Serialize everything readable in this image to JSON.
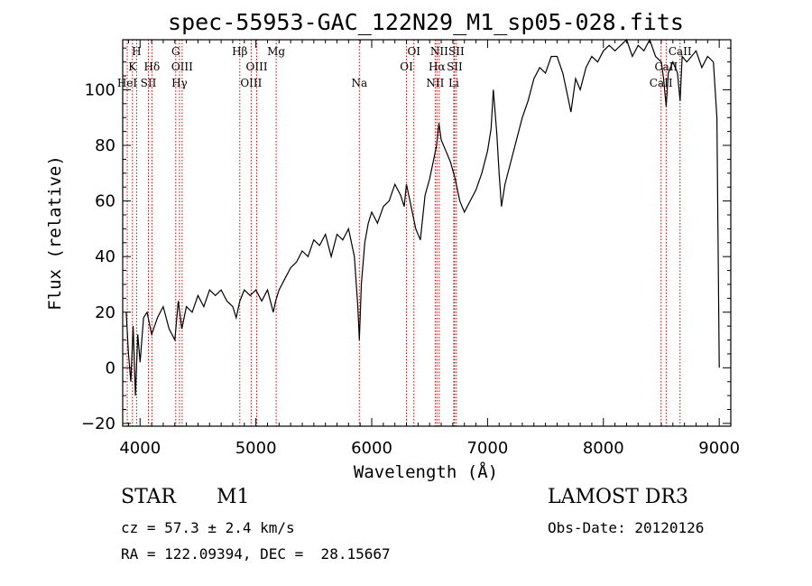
{
  "chart_data": {
    "type": "line",
    "title": "spec-55953-GAC_122N29_M1_sp05-028.fits",
    "xlabel": "Wavelength (Å)",
    "ylabel": "Flux (relative)",
    "xlim": [
      3850,
      9100
    ],
    "ylim": [
      -21,
      118
    ],
    "xticks": [
      4000,
      5000,
      6000,
      7000,
      8000,
      9000
    ],
    "yticks": [
      -20,
      0,
      20,
      40,
      60,
      80,
      100
    ],
    "series": [
      {
        "name": "flux",
        "x": [
          3880,
          3900,
          3920,
          3940,
          3960,
          3980,
          4000,
          4030,
          4060,
          4100,
          4150,
          4200,
          4250,
          4300,
          4330,
          4360,
          4400,
          4450,
          4500,
          4550,
          4600,
          4650,
          4700,
          4750,
          4800,
          4830,
          4861,
          4900,
          4950,
          5000,
          5050,
          5100,
          5150,
          5170,
          5200,
          5250,
          5300,
          5350,
          5400,
          5450,
          5500,
          5550,
          5600,
          5650,
          5700,
          5750,
          5800,
          5850,
          5880,
          5893,
          5910,
          5940,
          5970,
          6000,
          6050,
          6100,
          6150,
          6200,
          6250,
          6280,
          6300,
          6330,
          6380,
          6420,
          6460,
          6500,
          6530,
          6560,
          6580,
          6600,
          6640,
          6680,
          6720,
          6760,
          6800,
          6850,
          6900,
          6950,
          7000,
          7030,
          7050,
          7080,
          7100,
          7120,
          7150,
          7200,
          7250,
          7300,
          7350,
          7400,
          7450,
          7500,
          7550,
          7600,
          7650,
          7700,
          7720,
          7740,
          7760,
          7800,
          7850,
          7900,
          7950,
          8000,
          8050,
          8100,
          8150,
          8200,
          8250,
          8300,
          8350,
          8400,
          8450,
          8500,
          8520,
          8542,
          8560,
          8600,
          8640,
          8662,
          8680,
          8720,
          8760,
          8800,
          8850,
          8900,
          8950,
          8980,
          9000
        ],
        "y": [
          20,
          5,
          -5,
          15,
          -10,
          12,
          2,
          18,
          20,
          12,
          18,
          22,
          14,
          10,
          24,
          14,
          22,
          20,
          26,
          22,
          28,
          26,
          28,
          24,
          22,
          18,
          24,
          28,
          26,
          28,
          24,
          28,
          20,
          24,
          28,
          32,
          36,
          38,
          42,
          40,
          46,
          44,
          48,
          40,
          48,
          46,
          50,
          40,
          22,
          10,
          30,
          45,
          52,
          56,
          52,
          58,
          60,
          66,
          62,
          58,
          66,
          60,
          50,
          46,
          62,
          68,
          74,
          80,
          88,
          82,
          78,
          74,
          68,
          60,
          56,
          60,
          64,
          70,
          78,
          86,
          100,
          84,
          70,
          58,
          66,
          74,
          82,
          90,
          96,
          104,
          108,
          106,
          112,
          112,
          106,
          96,
          92,
          98,
          104,
          100,
          108,
          112,
          110,
          114,
          116,
          114,
          116,
          118,
          112,
          116,
          114,
          118,
          112,
          110,
          104,
          94,
          106,
          110,
          106,
          96,
          112,
          110,
          112,
          114,
          108,
          112,
          110,
          90,
          0
        ]
      }
    ],
    "spectral_lines": [
      {
        "wl": 3889,
        "label": "HeI",
        "row": 3
      },
      {
        "wl": 3934,
        "label": "K",
        "row": 2
      },
      {
        "wl": 3970,
        "label": "H",
        "row": 1
      },
      {
        "wl": 4072,
        "label": "SII",
        "row": 3
      },
      {
        "wl": 4102,
        "label": "Hδ",
        "row": 2
      },
      {
        "wl": 4308,
        "label": "G",
        "row": 1
      },
      {
        "wl": 4340,
        "label": "Hγ",
        "row": 3
      },
      {
        "wl": 4363,
        "label": "OIII",
        "row": 2
      },
      {
        "wl": 4861,
        "label": "Hβ",
        "row": 1
      },
      {
        "wl": 4959,
        "label": "OIII",
        "row": 3
      },
      {
        "wl": 5007,
        "label": "OIII",
        "row": 2
      },
      {
        "wl": 5175,
        "label": "Mg",
        "row": 1
      },
      {
        "wl": 5893,
        "label": "Na",
        "row": 3
      },
      {
        "wl": 6300,
        "label": "OI",
        "row": 2
      },
      {
        "wl": 6364,
        "label": "OI",
        "row": 1
      },
      {
        "wl": 6548,
        "label": "NII",
        "row": 3
      },
      {
        "wl": 6563,
        "label": "Hα",
        "row": 2
      },
      {
        "wl": 6583,
        "label": "NII",
        "row": 1
      },
      {
        "wl": 6708,
        "label": "Li",
        "row": 3
      },
      {
        "wl": 6716,
        "label": "SII",
        "row": 2
      },
      {
        "wl": 6731,
        "label": "SII",
        "row": 1
      },
      {
        "wl": 8498,
        "label": "CaII",
        "row": 3
      },
      {
        "wl": 8542,
        "label": "CaII",
        "row": 2
      },
      {
        "wl": 8662,
        "label": "CaII",
        "row": 1
      }
    ],
    "line_color": "#cc0000",
    "trace_color": "#000000"
  },
  "info": {
    "object_class": "STAR",
    "subclass": "M1",
    "survey": "LAMOST DR3",
    "cz": "cz = 57.3 ± 2.4 km/s",
    "obs_date": "Obs-Date: 20120126",
    "coords": "RA = 122.09394, DEC =  28.15667"
  }
}
